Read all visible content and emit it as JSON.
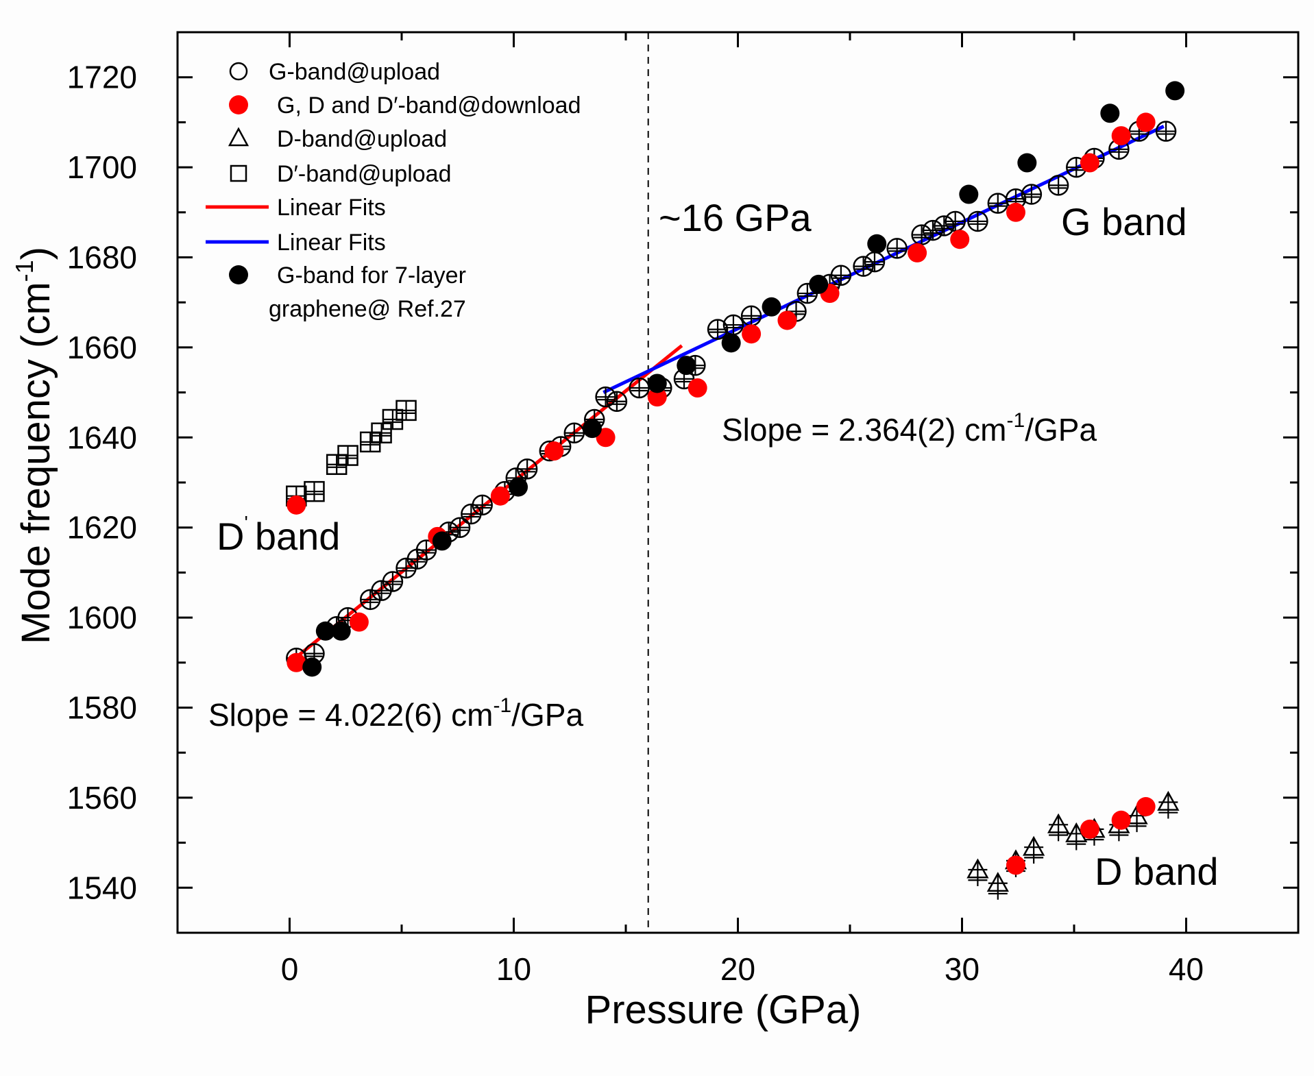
{
  "chart_data": {
    "type": "scatter",
    "title": "",
    "xlabel": "Pressure (GPa)",
    "ylabel": "Mode frequency (cm",
    "ylabel_sup": "-1",
    "ylabel_end": ")",
    "xlim": [
      -5,
      45
    ],
    "ylim": [
      1530,
      1730
    ],
    "x_ticks": [
      0,
      10,
      20,
      30,
      40
    ],
    "x_tick_labels": [
      "0",
      "10",
      "20",
      "30",
      "40"
    ],
    "y_ticks": [
      1540,
      1560,
      1580,
      1600,
      1620,
      1640,
      1660,
      1680,
      1700,
      1720
    ],
    "y_tick_labels": [
      "1540",
      "1560",
      "1580",
      "1600",
      "1620",
      "1640",
      "1660",
      "1680",
      "1700",
      "1720"
    ],
    "grid": false,
    "legend_position": "top-left",
    "colors": {
      "red": "#ff0000",
      "blue": "#0000ff",
      "black": "#000000"
    },
    "series": [
      {
        "name": "G-band@upload",
        "marker": "circle-crossed-open",
        "color": "#000000",
        "points": [
          [
            0.3,
            1591
          ],
          [
            1.1,
            1592
          ],
          [
            2.1,
            1598
          ],
          [
            2.6,
            1600
          ],
          [
            3.6,
            1604
          ],
          [
            4.1,
            1606
          ],
          [
            4.6,
            1608
          ],
          [
            5.2,
            1611
          ],
          [
            5.7,
            1613
          ],
          [
            6.1,
            1615
          ],
          [
            7.1,
            1619
          ],
          [
            7.6,
            1620
          ],
          [
            8.1,
            1623
          ],
          [
            8.6,
            1625
          ],
          [
            9.6,
            1628
          ],
          [
            10.1,
            1631
          ],
          [
            10.6,
            1633
          ],
          [
            11.6,
            1637
          ],
          [
            12.1,
            1638
          ],
          [
            12.7,
            1641
          ],
          [
            13.6,
            1644
          ],
          [
            14.1,
            1649
          ],
          [
            14.6,
            1648
          ],
          [
            15.6,
            1651
          ],
          [
            16.6,
            1651
          ],
          [
            17.6,
            1653
          ],
          [
            18.1,
            1656
          ],
          [
            19.1,
            1664
          ],
          [
            19.8,
            1665
          ],
          [
            20.6,
            1667
          ],
          [
            22.6,
            1668
          ],
          [
            23.1,
            1672
          ],
          [
            24.1,
            1674
          ],
          [
            24.6,
            1676
          ],
          [
            25.6,
            1678
          ],
          [
            26.1,
            1679
          ],
          [
            27.1,
            1682
          ],
          [
            28.2,
            1685
          ],
          [
            28.7,
            1686
          ],
          [
            29.2,
            1687
          ],
          [
            29.7,
            1688
          ],
          [
            30.7,
            1688
          ],
          [
            31.6,
            1692
          ],
          [
            32.4,
            1693
          ],
          [
            33.1,
            1694
          ],
          [
            34.3,
            1696
          ],
          [
            35.1,
            1700
          ],
          [
            35.9,
            1702
          ],
          [
            37.0,
            1704
          ],
          [
            37.9,
            1708
          ],
          [
            39.1,
            1708
          ]
        ]
      },
      {
        "name": "G, D and D′-band@download",
        "marker": "circle-filled",
        "color": "#ff0000",
        "points": [
          [
            0.3,
            1590
          ],
          [
            3.1,
            1599
          ],
          [
            6.6,
            1618
          ],
          [
            9.4,
            1627
          ],
          [
            11.8,
            1637
          ],
          [
            14.1,
            1640
          ],
          [
            16.4,
            1649
          ],
          [
            18.2,
            1651
          ],
          [
            20.6,
            1663
          ],
          [
            22.2,
            1666
          ],
          [
            24.1,
            1672
          ],
          [
            28.0,
            1681
          ],
          [
            29.9,
            1684
          ],
          [
            32.4,
            1690
          ],
          [
            35.7,
            1701
          ],
          [
            37.1,
            1707
          ],
          [
            38.2,
            1710
          ],
          [
            0.3,
            1625
          ],
          [
            32.4,
            1545
          ],
          [
            35.7,
            1553
          ],
          [
            37.1,
            1555
          ],
          [
            38.2,
            1558
          ]
        ]
      },
      {
        "name": "D-band@upload",
        "marker": "triangle-crossed-open",
        "color": "#000000",
        "points": [
          [
            30.7,
            1544
          ],
          [
            31.6,
            1541
          ],
          [
            32.4,
            1546
          ],
          [
            33.2,
            1549
          ],
          [
            34.3,
            1554
          ],
          [
            35.1,
            1552
          ],
          [
            35.9,
            1553
          ],
          [
            37.0,
            1554
          ],
          [
            37.8,
            1556
          ],
          [
            39.2,
            1559
          ]
        ]
      },
      {
        "name": "D′-band@upload",
        "marker": "square-crossed-open",
        "color": "#000000",
        "points": [
          [
            0.3,
            1627
          ],
          [
            1.1,
            1628
          ],
          [
            2.1,
            1634
          ],
          [
            2.6,
            1636
          ],
          [
            3.6,
            1639
          ],
          [
            4.1,
            1641
          ],
          [
            4.6,
            1644
          ],
          [
            5.2,
            1646
          ]
        ]
      },
      {
        "name": "G-band for 7-layer",
        "name_line2": "graphene@ Ref.27",
        "marker": "circle-filled",
        "color": "#000000",
        "points": [
          [
            1.0,
            1589
          ],
          [
            1.6,
            1597
          ],
          [
            2.3,
            1597
          ],
          [
            6.8,
            1617
          ],
          [
            10.2,
            1629
          ],
          [
            13.5,
            1642
          ],
          [
            16.4,
            1652
          ],
          [
            17.7,
            1656
          ],
          [
            19.7,
            1661
          ],
          [
            21.5,
            1669
          ],
          [
            23.6,
            1674
          ],
          [
            26.2,
            1683
          ],
          [
            30.3,
            1694
          ],
          [
            32.9,
            1701
          ],
          [
            36.6,
            1712
          ],
          [
            39.5,
            1717
          ]
        ]
      }
    ],
    "fits": [
      {
        "name": "Linear Fits",
        "color": "#ff0000",
        "x": [
          0,
          17.5
        ],
        "y": [
          1590,
          1660.4
        ],
        "slope": 4.022
      },
      {
        "name": "Linear Fits",
        "color": "#0000ff",
        "x": [
          14,
          39
        ],
        "y": [
          1650,
          1709.1
        ],
        "slope": 2.364
      }
    ],
    "vline": {
      "x": 16,
      "style": "dashed"
    },
    "annotations": {
      "transition": "~16 GPa",
      "g_band": "G band",
      "d_prime_band": "D",
      "d_prime_mark": "'",
      "d_prime_band_suffix": "band",
      "d_band": "D band",
      "slope_high_prefix": "Slope = 2.364(2) cm",
      "slope_high_sup": "-1",
      "slope_high_suffix": "/GPa",
      "slope_low_prefix": "Slope = 4.022(6) cm",
      "slope_low_sup": "-1",
      "slope_low_suffix": "/GPa"
    }
  }
}
